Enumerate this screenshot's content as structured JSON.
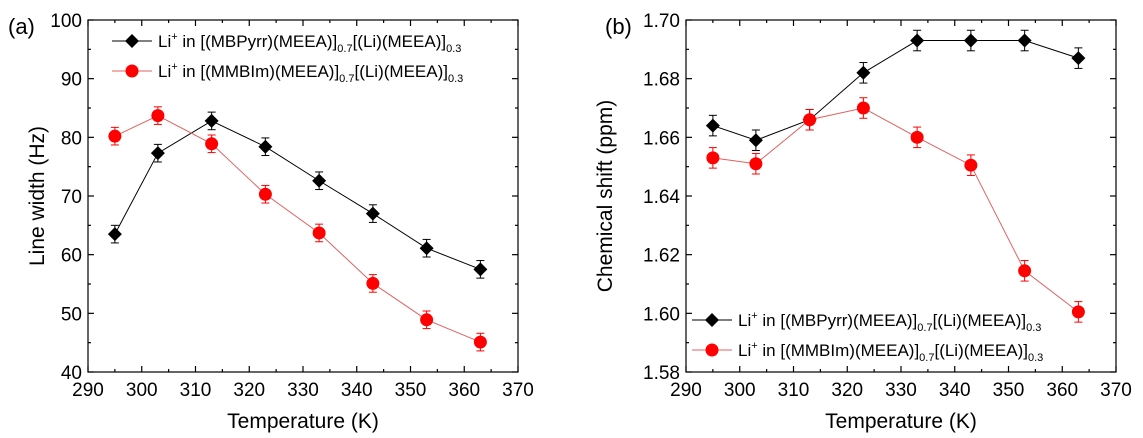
{
  "colors": {
    "black_series": "#000000",
    "red_series": "#ff0000",
    "red_line": "#e06060"
  },
  "legend_entries": [
    {
      "main": "Li",
      "sup": "+",
      "text1": " in [(MBPyrr)(MEEA)]",
      "sub1": "0.7",
      "text2": "[(Li)(MEEA)]",
      "sub2": "0.3",
      "marker": "diamond",
      "color": "#000000"
    },
    {
      "main": "Li",
      "sup": "+",
      "text1": " in [(MMBIm)(MEEA)]",
      "sub1": "0.7",
      "text2": "[(Li)(MEEA)]",
      "sub2": "0.3",
      "marker": "circle",
      "color": "#ff0000"
    }
  ],
  "chart_data": [
    {
      "type": "line",
      "panel_label": "(a)",
      "xlabel": "Temperature (K)",
      "ylabel": "Line width (Hz)",
      "xlim": [
        290,
        370
      ],
      "ylim": [
        40,
        100
      ],
      "xticks": [
        290,
        300,
        310,
        320,
        330,
        340,
        350,
        360,
        370
      ],
      "yticks": [
        40,
        50,
        60,
        70,
        80,
        90,
        100
      ],
      "ytick_decimals": 0,
      "legend_position": "top-left",
      "series": [
        {
          "name_ref": 0,
          "marker": "diamond",
          "color": "#000000",
          "x": [
            295,
            303,
            313,
            323,
            333,
            343,
            353,
            363
          ],
          "y": [
            63.5,
            77.3,
            82.8,
            78.4,
            72.6,
            67.0,
            61.1,
            57.5
          ],
          "err": [
            1.5,
            1.5,
            1.5,
            1.5,
            1.5,
            1.5,
            1.5,
            1.5
          ]
        },
        {
          "name_ref": 1,
          "marker": "circle",
          "color": "#ff0000",
          "x": [
            295,
            303,
            313,
            323,
            333,
            343,
            353,
            363
          ],
          "y": [
            80.2,
            83.7,
            78.9,
            70.3,
            63.7,
            55.1,
            48.9,
            45.1
          ],
          "err": [
            1.5,
            1.5,
            1.5,
            1.5,
            1.5,
            1.5,
            1.5,
            1.5
          ]
        }
      ]
    },
    {
      "type": "line",
      "panel_label": "(b)",
      "xlabel": "Temperature (K)",
      "ylabel": "Chemical shift (ppm)",
      "xlim": [
        290,
        370
      ],
      "ylim": [
        1.58,
        1.7
      ],
      "xticks": [
        290,
        300,
        310,
        320,
        330,
        340,
        350,
        360,
        370
      ],
      "yticks": [
        1.58,
        1.6,
        1.62,
        1.64,
        1.66,
        1.68,
        1.7
      ],
      "ytick_decimals": 2,
      "legend_position": "bottom-left",
      "series": [
        {
          "name_ref": 0,
          "marker": "diamond",
          "color": "#000000",
          "x": [
            295,
            303,
            313,
            323,
            333,
            343,
            353,
            363
          ],
          "y": [
            1.664,
            1.659,
            1.666,
            1.682,
            1.693,
            1.693,
            1.693,
            1.687
          ],
          "err": [
            0.0035,
            0.0035,
            0.0035,
            0.0035,
            0.0035,
            0.0035,
            0.0035,
            0.0035
          ]
        },
        {
          "name_ref": 1,
          "marker": "circle",
          "color": "#ff0000",
          "x": [
            295,
            303,
            313,
            323,
            333,
            343,
            353,
            363
          ],
          "y": [
            1.653,
            1.651,
            1.666,
            1.67,
            1.66,
            1.6505,
            1.6145,
            1.6005
          ],
          "err": [
            0.0035,
            0.0035,
            0.0035,
            0.0035,
            0.0035,
            0.0035,
            0.0035,
            0.0035
          ]
        }
      ]
    }
  ]
}
